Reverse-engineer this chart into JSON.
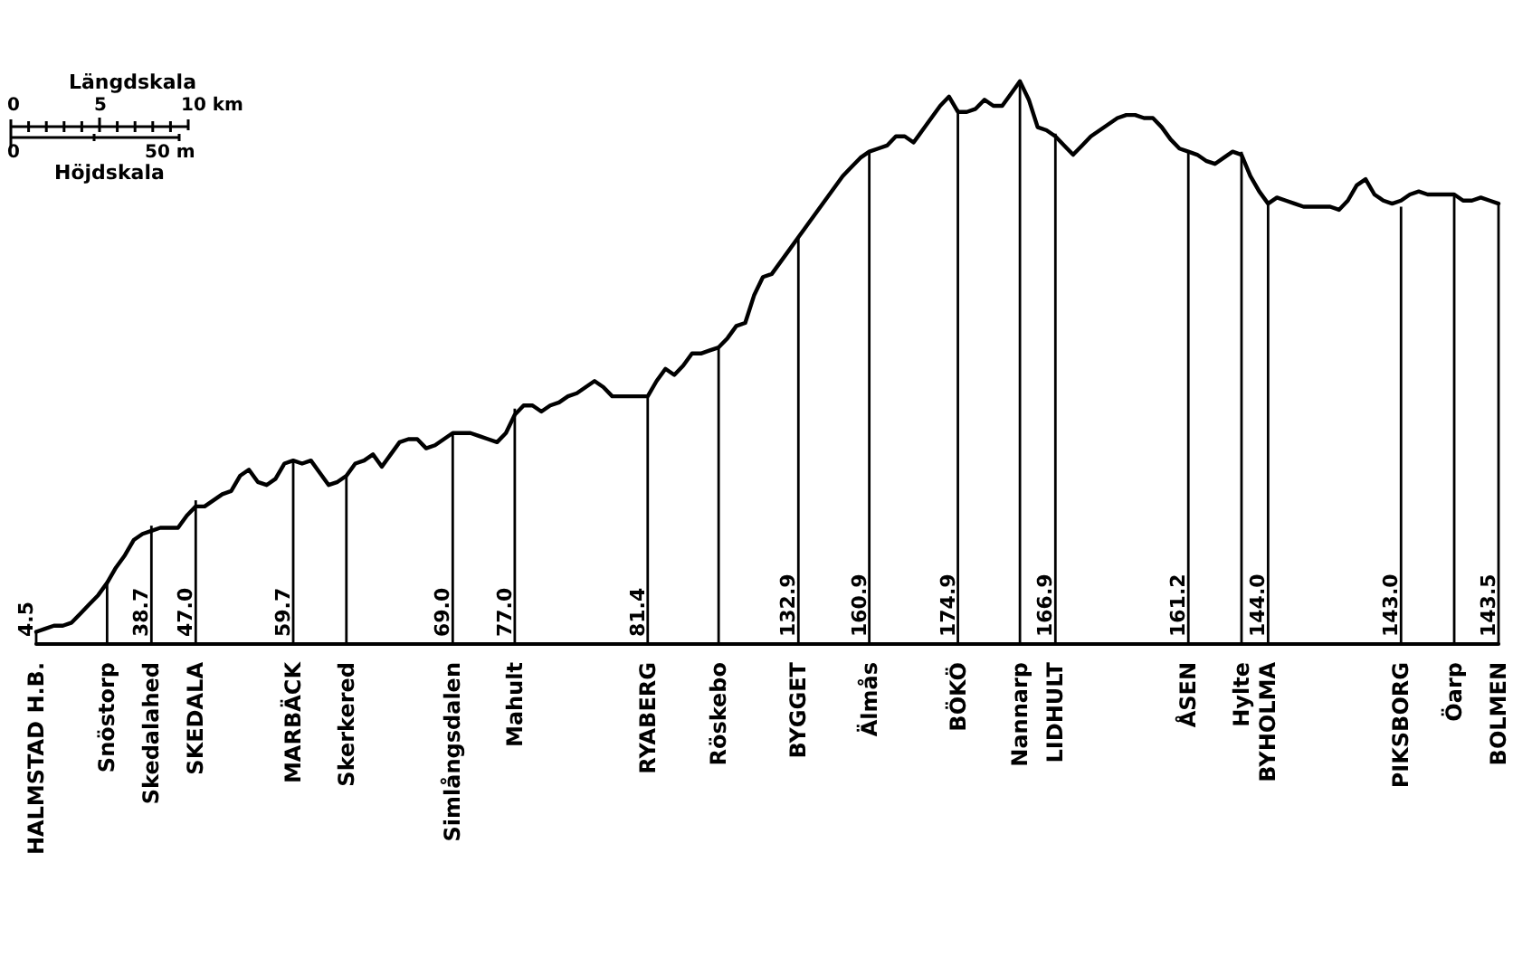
{
  "chart_data": {
    "type": "line",
    "tick_labels": "x",
    "grid": false,
    "marker": "none",
    "line_style": "solid",
    "categories": [
      "HALMSTAD H.B.",
      null,
      null,
      null,
      null,
      null,
      null,
      null,
      "Snöstorp",
      null,
      null,
      null,
      null,
      "Skedalahed",
      null,
      null,
      null,
      null,
      "SKEDALA",
      null,
      null,
      null,
      null,
      null,
      null,
      null,
      null,
      null,
      null,
      "MARBÄCK",
      null,
      null,
      null,
      null,
      null,
      "Skerkered",
      null,
      null,
      null,
      null,
      null,
      null,
      null,
      null,
      null,
      null,
      null,
      "Simlångsdalen",
      null,
      null,
      null,
      null,
      null,
      null,
      "Mahult",
      null,
      null,
      null,
      null,
      null,
      null,
      null,
      null,
      null,
      null,
      null,
      null,
      null,
      null,
      "RYABERG",
      null,
      null,
      null,
      null,
      null,
      null,
      null,
      "Röskebo",
      null,
      null,
      null,
      null,
      null,
      null,
      null,
      null,
      "BYGGET",
      null,
      null,
      null,
      null,
      null,
      null,
      null,
      "Älmås",
      null,
      null,
      null,
      null,
      null,
      null,
      null,
      null,
      null,
      "BÖKÖ",
      null,
      null,
      null,
      null,
      null,
      null,
      "Nannarp",
      null,
      null,
      null,
      "LIDHULT",
      null,
      null,
      null,
      null,
      null,
      null,
      null,
      null,
      null,
      null,
      null,
      null,
      null,
      null,
      "ÅSEN",
      null,
      null,
      null,
      null,
      null,
      "Hylte",
      null,
      null,
      "BYHOLMA",
      null,
      null,
      null,
      null,
      null,
      null,
      null,
      null,
      null,
      null,
      null,
      null,
      null,
      null,
      "PIKSBORG",
      null,
      null,
      null,
      null,
      null,
      "Öarp",
      null,
      null,
      null,
      null,
      "BOLMEN"
    ],
    "annotations": [
      "Längdskala",
      "0",
      "5",
      "10 km",
      "0",
      "50 m",
      "Höjdskala"
    ],
    "series": [
      {
        "color": "#000000",
        "values": [
          4,
          5,
          6,
          6,
          7,
          10,
          13,
          16,
          20,
          25,
          29,
          34,
          36,
          37,
          38,
          38,
          38,
          42,
          45,
          45,
          47,
          49,
          50,
          55,
          57,
          53,
          52,
          54,
          59,
          60,
          59,
          60,
          56,
          52,
          53,
          55,
          59,
          60,
          62,
          58,
          62,
          66,
          67,
          67,
          64,
          65,
          67,
          69,
          69,
          69,
          68,
          67,
          66,
          69,
          75,
          78,
          78,
          76,
          78,
          79,
          81,
          82,
          84,
          86,
          84,
          81,
          81,
          81,
          81,
          81,
          86,
          90,
          88,
          91,
          95,
          95,
          96,
          97,
          100,
          104,
          105,
          114,
          120,
          121,
          125,
          129,
          133,
          137,
          141,
          145,
          149,
          153,
          156,
          159,
          161,
          162,
          163,
          166,
          166,
          164,
          168,
          172,
          176,
          179,
          174,
          174,
          175,
          178,
          176,
          176,
          180,
          184,
          178,
          169,
          168,
          166,
          163,
          160,
          163,
          166,
          168,
          170,
          172,
          173,
          173,
          172,
          172,
          169,
          165,
          162,
          161,
          160,
          158,
          157,
          159,
          161,
          160,
          153,
          148,
          144,
          146,
          145,
          144,
          143,
          143,
          143,
          143,
          142,
          145,
          150,
          152,
          147,
          145,
          144,
          145,
          147,
          148,
          147,
          147,
          147,
          147,
          145,
          145,
          146,
          145,
          144
        ]
      },
      {
        "type": "bar",
        "color": "#000000",
        "values": [
          4.5,
          null,
          null,
          null,
          null,
          null,
          null,
          null,
          20,
          null,
          null,
          null,
          null,
          38.7,
          null,
          null,
          null,
          null,
          47.0,
          null,
          null,
          null,
          null,
          null,
          null,
          null,
          null,
          null,
          null,
          59.7,
          null,
          null,
          null,
          null,
          null,
          55,
          null,
          null,
          null,
          null,
          null,
          null,
          null,
          null,
          null,
          null,
          null,
          69.0,
          null,
          null,
          null,
          null,
          null,
          null,
          77.0,
          null,
          null,
          null,
          null,
          null,
          null,
          null,
          null,
          null,
          null,
          null,
          null,
          null,
          null,
          81.4,
          null,
          null,
          null,
          null,
          null,
          null,
          null,
          97,
          null,
          null,
          null,
          null,
          null,
          null,
          null,
          null,
          132.9,
          null,
          null,
          null,
          null,
          null,
          null,
          null,
          160.9,
          null,
          null,
          null,
          null,
          null,
          null,
          null,
          null,
          null,
          174.9,
          null,
          null,
          null,
          null,
          null,
          null,
          184,
          null,
          null,
          null,
          166.9,
          null,
          null,
          null,
          null,
          null,
          null,
          null,
          null,
          null,
          null,
          null,
          null,
          null,
          null,
          161.2,
          null,
          null,
          null,
          null,
          null,
          161,
          null,
          null,
          144.0,
          null,
          null,
          null,
          null,
          null,
          null,
          null,
          null,
          null,
          null,
          null,
          null,
          null,
          null,
          143.0,
          null,
          null,
          null,
          null,
          null,
          147,
          null,
          null,
          null,
          null,
          143.5
        ],
        "value_labels": [
          "4.5",
          null,
          null,
          null,
          null,
          null,
          null,
          null,
          null,
          null,
          null,
          null,
          null,
          "38.7",
          null,
          null,
          null,
          null,
          "47.0",
          null,
          null,
          null,
          null,
          null,
          null,
          null,
          null,
          null,
          null,
          "59.7",
          null,
          null,
          null,
          null,
          null,
          null,
          null,
          null,
          null,
          null,
          null,
          null,
          null,
          null,
          null,
          null,
          null,
          "69.0",
          null,
          null,
          null,
          null,
          null,
          null,
          "77.0",
          null,
          null,
          null,
          null,
          null,
          null,
          null,
          null,
          null,
          null,
          null,
          null,
          null,
          null,
          "81.4",
          null,
          null,
          null,
          null,
          null,
          null,
          null,
          null,
          null,
          null,
          null,
          null,
          null,
          null,
          null,
          null,
          "132.9",
          null,
          null,
          null,
          null,
          null,
          null,
          null,
          "160.9",
          null,
          null,
          null,
          null,
          null,
          null,
          null,
          null,
          null,
          "174.9",
          null,
          null,
          null,
          null,
          null,
          null,
          null,
          null,
          null,
          null,
          "166.9",
          null,
          null,
          null,
          null,
          null,
          null,
          null,
          null,
          null,
          null,
          null,
          null,
          null,
          null,
          "161.2",
          null,
          null,
          null,
          null,
          null,
          null,
          null,
          null,
          "144.0",
          null,
          null,
          null,
          null,
          null,
          null,
          null,
          null,
          null,
          null,
          null,
          null,
          null,
          null,
          "143.0",
          null,
          null,
          null,
          null,
          null,
          null,
          null,
          null,
          null,
          null,
          "143.5"
        ]
      }
    ]
  }
}
